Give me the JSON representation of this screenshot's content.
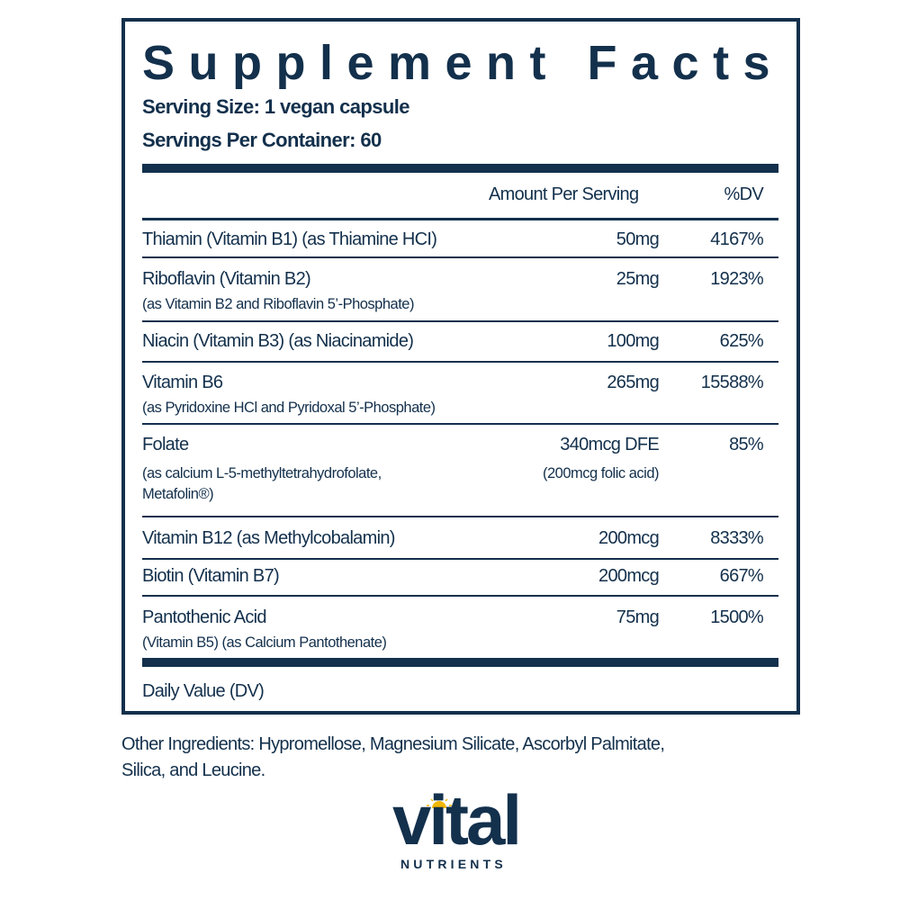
{
  "title": "Supplement Facts",
  "serving_size": "Serving Size: 1 vegan capsule",
  "servings_per_container": "Servings Per Container: 60",
  "headers": {
    "amount": "Amount Per Serving",
    "dv": "%DV"
  },
  "rows": [
    {
      "name": "Thiamin (Vitamin B1) (as Thiamine HCI)",
      "amount": "50mg",
      "dv": "4167%"
    },
    {
      "name": "Riboflavin (Vitamin B2)",
      "sub": "(as Vitamin B2 and Riboflavin 5’-Phosphate)",
      "amount": "25mg",
      "dv": "1923%"
    },
    {
      "name": "Niacin (Vitamin B3) (as Niacinamide)",
      "amount": "100mg",
      "dv": "625%"
    },
    {
      "name": "Vitamin B6",
      "sub": "(as Pyridoxine HCl and Pyridoxal 5’-Phosphate)",
      "amount": "265mg",
      "dv": "15588%"
    },
    {
      "name": "Folate",
      "sub": "(as calcium L-5-methyltetrahydrofolate,",
      "sub2": "Metafolin®)",
      "amount": "340mcg DFE",
      "amount2": "(200mcg folic acid)",
      "dv": "85%"
    },
    {
      "name": "Vitamin B12 (as Methylcobalamin)",
      "amount": "200mcg",
      "dv": "8333%"
    },
    {
      "name": "Biotin (Vitamin B7)",
      "amount": "200mcg",
      "dv": "667%"
    },
    {
      "name": "Pantothenic Acid",
      "sub": "(Vitamin B5) (as Calcium Pantothenate)",
      "amount": "75mg",
      "dv": "1500%"
    }
  ],
  "footnote": "Daily Value (DV)",
  "other_ingredients_1": "Other Ingredients: Hypromellose, Magnesium Silicate, Ascorbyl Palmitate,",
  "other_ingredients_2": "Silica, and Leucine.",
  "logo": {
    "word": "vital",
    "sub": "NUTRIENTS"
  },
  "colors": {
    "navy": "#13304c",
    "sun": "#f2b705"
  }
}
